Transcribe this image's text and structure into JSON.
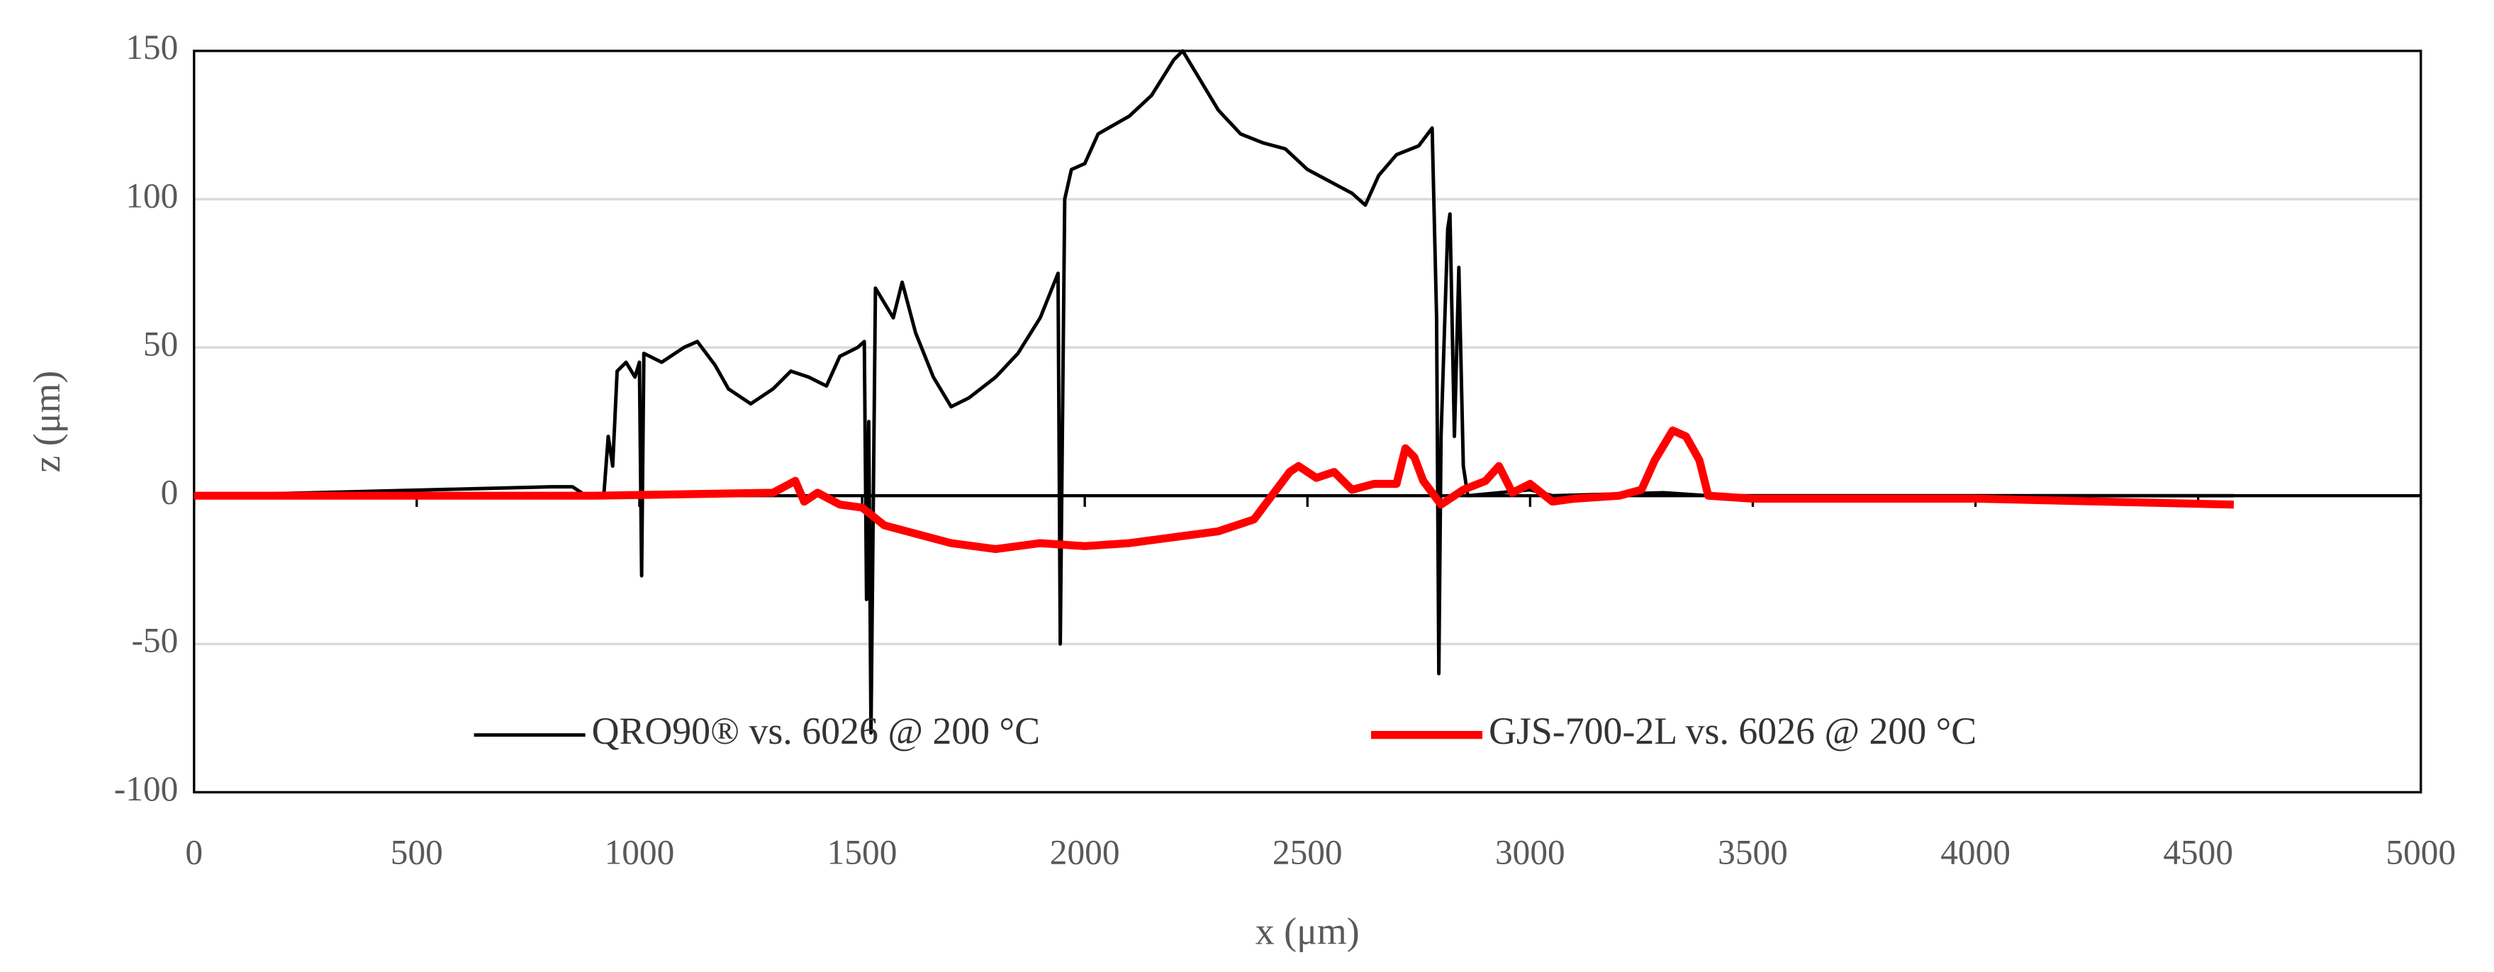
{
  "chart_data": {
    "type": "line",
    "x_label": "x (μm)",
    "y_label": "z (μm)",
    "xlim": [
      0,
      5000
    ],
    "ylim": [
      -100,
      150
    ],
    "xticks": [
      0,
      500,
      1000,
      1500,
      2000,
      2500,
      3000,
      3500,
      4000,
      4500,
      5000
    ],
    "yticks": [
      -100,
      -50,
      0,
      50,
      100,
      150
    ],
    "grid": true,
    "legend": "bottom",
    "series": [
      {
        "name": "QRO90® vs. 6026 @ 200 °C",
        "color": "#000000",
        "x": [
          0,
          800,
          850,
          880,
          920,
          930,
          940,
          950,
          970,
          990,
          1000,
          1005,
          1010,
          1050,
          1100,
          1130,
          1170,
          1200,
          1250,
          1300,
          1340,
          1380,
          1420,
          1450,
          1490,
          1505,
          1510,
          1515,
          1520,
          1530,
          1550,
          1570,
          1590,
          1620,
          1660,
          1700,
          1740,
          1800,
          1850,
          1900,
          1940,
          1945,
          1955,
          1970,
          2000,
          2030,
          2100,
          2150,
          2200,
          2220,
          2260,
          2300,
          2350,
          2400,
          2450,
          2500,
          2550,
          2600,
          2630,
          2660,
          2700,
          2750,
          2780,
          2790,
          2795,
          2800,
          2815,
          2820,
          2830,
          2840,
          2850,
          2860,
          3000,
          3050,
          3300,
          3400,
          4580
        ],
        "values": [
          0,
          3,
          3,
          0,
          0,
          20,
          10,
          42,
          45,
          40,
          45,
          -27,
          48,
          45,
          50,
          52,
          44,
          36,
          31,
          36,
          42,
          40,
          37,
          47,
          50,
          52,
          -35,
          25,
          -80,
          70,
          65,
          60,
          72,
          55,
          40,
          30,
          33,
          40,
          48,
          60,
          75,
          -50,
          100,
          110,
          112,
          122,
          128,
          135,
          147,
          150,
          140,
          130,
          122,
          119,
          117,
          110,
          106,
          102,
          98,
          108,
          115,
          118,
          124,
          60,
          -60,
          20,
          90,
          95,
          20,
          77,
          10,
          0,
          2,
          0,
          1,
          0,
          0
        ]
      },
      {
        "name": "GJS-700-2L vs. 6026 @ 200 °C",
        "color": "#ff0000",
        "x": [
          0,
          500,
          900,
          1300,
          1350,
          1370,
          1400,
          1450,
          1500,
          1550,
          1600,
          1700,
          1800,
          1900,
          2000,
          2100,
          2200,
          2300,
          2380,
          2420,
          2460,
          2480,
          2520,
          2560,
          2600,
          2650,
          2700,
          2720,
          2740,
          2760,
          2800,
          2850,
          2900,
          2930,
          2960,
          3000,
          3050,
          3100,
          3200,
          3250,
          3280,
          3320,
          3350,
          3380,
          3400,
          3500,
          4000,
          4580
        ],
        "values": [
          0,
          0,
          0,
          1,
          5,
          -2,
          1,
          -3,
          -4,
          -10,
          -12,
          -16,
          -18,
          -16,
          -17,
          -16,
          -14,
          -12,
          -8,
          0,
          8,
          10,
          6,
          8,
          2,
          4,
          4,
          16,
          13,
          5,
          -3,
          2,
          5,
          10,
          1,
          4,
          -2,
          -1,
          0,
          2,
          12,
          22,
          20,
          12,
          0,
          -1,
          -1,
          -3
        ]
      }
    ]
  }
}
